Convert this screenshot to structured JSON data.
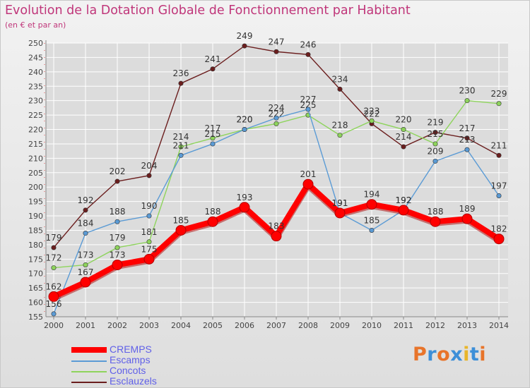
{
  "title": "Evolution de la Dotation Globale de Fonctionnement par Habitant",
  "subtitle": "(en € et par an)",
  "brand": {
    "text": "Proxiti",
    "colors": [
      "#e8742a",
      "#3c8fd8",
      "#e8742a",
      "#3c8fd8",
      "#e8b52a",
      "#3c8fd8",
      "#e8742a"
    ]
  },
  "colors": {
    "title": "#c0367a",
    "axis_text": "#444444",
    "grid": "#ffffff",
    "legend_text": "#6060e8"
  },
  "chart_data": {
    "type": "line",
    "title": "Evolution de la Dotation Globale de Fonctionnement par Habitant",
    "xlabel": "",
    "ylabel": "(en € et par an)",
    "x": [
      "2000",
      "2001",
      "2002",
      "2003",
      "2004",
      "2005",
      "2006",
      "2007",
      "2008",
      "2009",
      "2010",
      "2011",
      "2012",
      "2013",
      "2014"
    ],
    "ylim": [
      155,
      250
    ],
    "yticks": [
      155,
      160,
      165,
      170,
      175,
      180,
      185,
      190,
      195,
      200,
      205,
      210,
      215,
      220,
      225,
      230,
      235,
      240,
      245,
      250
    ],
    "grid": true,
    "legend": "bottom-left",
    "series": [
      {
        "name": "Esclauzels",
        "color": "#6b1e1e",
        "emphasis": false,
        "values": [
          179,
          192,
          202,
          204,
          236,
          241,
          249,
          247,
          246,
          234,
          222,
          214,
          219,
          217,
          211
        ]
      },
      {
        "name": "Concots",
        "color": "#8ed45c",
        "emphasis": false,
        "values": [
          172,
          173,
          179,
          181,
          214,
          217,
          220,
          222,
          225,
          218,
          223,
          220,
          215,
          230,
          229
        ]
      },
      {
        "name": "Escamps",
        "color": "#5b9bd5",
        "emphasis": false,
        "values": [
          156,
          184,
          188,
          190,
          211,
          215,
          220,
          224,
          227,
          191,
          185,
          192,
          209,
          213,
          197
        ]
      },
      {
        "name": "CREMPS",
        "color": "#ff0000",
        "emphasis": true,
        "values": [
          162,
          167,
          173,
          175,
          185,
          188,
          193,
          183,
          201,
          191,
          194,
          192,
          188,
          189,
          182
        ]
      }
    ]
  }
}
